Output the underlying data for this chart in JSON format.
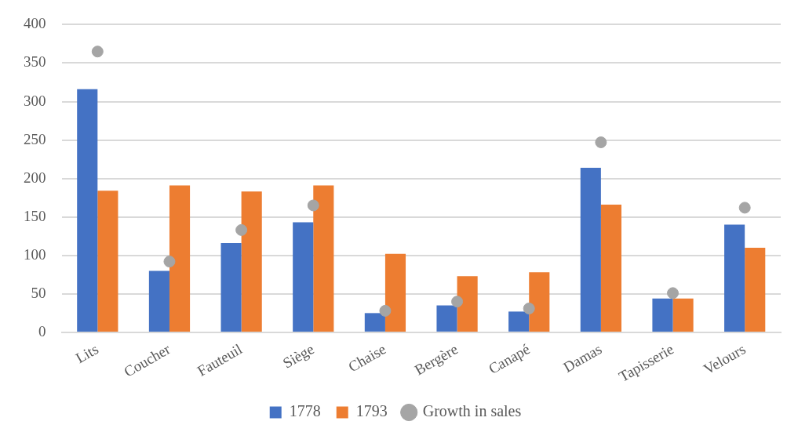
{
  "chart_data": {
    "type": "bar",
    "categories": [
      "Lits",
      "Coucher",
      "Fauteuil",
      "Siège",
      "Chaise",
      "Bergère",
      "Canapé",
      "Damas",
      "Tapisserie",
      "Velours"
    ],
    "series": [
      {
        "name": "1778",
        "color": "#4472c4",
        "values": [
          316,
          80,
          116,
          143,
          25,
          35,
          27,
          214,
          44,
          140
        ]
      },
      {
        "name": "1793",
        "color": "#ed7d31",
        "values": [
          184,
          191,
          183,
          191,
          102,
          73,
          78,
          166,
          44,
          110
        ]
      },
      {
        "name": "Growth in sales",
        "type": "scatter",
        "color": "#a5a5a5",
        "x": [
          "Lits",
          "Coucher",
          "Fauteuil",
          "Siège",
          "Chaise",
          "Bergère",
          "Canapé",
          "Damas",
          "Tapisserie",
          "Velours"
        ],
        "values": [
          365,
          92,
          133,
          165,
          28,
          40,
          31,
          247,
          51,
          162
        ]
      }
    ],
    "ylim": [
      0,
      400
    ],
    "yticks": [
      0,
      50,
      100,
      150,
      200,
      250,
      300,
      350,
      400
    ],
    "grid": "y",
    "legend": "bottom",
    "marker": "circle"
  }
}
